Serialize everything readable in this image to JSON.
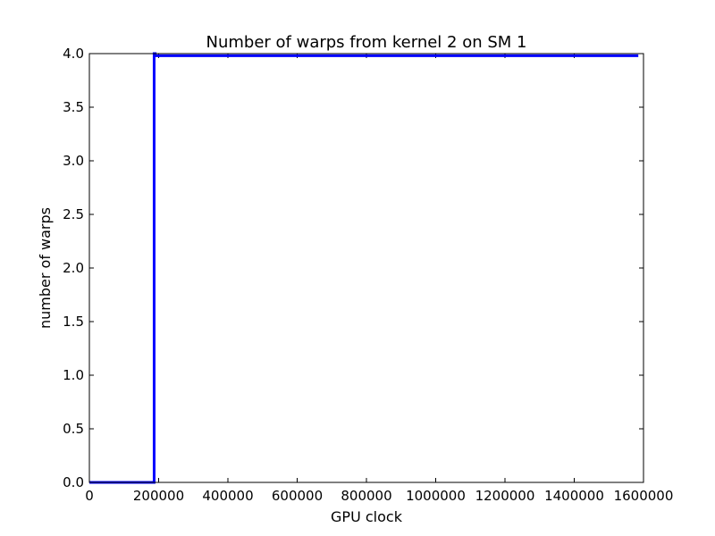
{
  "chart_data": {
    "type": "line",
    "title": "Number of warps from kernel 2 on SM 1",
    "xlabel": "GPU clock",
    "ylabel": "number of warps",
    "xlim": [
      0,
      1600000
    ],
    "ylim": [
      0.0,
      4.0
    ],
    "x_ticks": [
      0,
      200000,
      400000,
      600000,
      800000,
      1000000,
      1200000,
      1400000,
      1600000
    ],
    "x_tick_labels": [
      "0",
      "200000",
      "400000",
      "600000",
      "800000",
      "1000000",
      "1200000",
      "1400000",
      "1600000"
    ],
    "y_ticks": [
      0.0,
      0.5,
      1.0,
      1.5,
      2.0,
      2.5,
      3.0,
      3.5,
      4.0
    ],
    "y_tick_labels": [
      "0.0",
      "0.5",
      "1.0",
      "1.5",
      "2.0",
      "2.5",
      "3.0",
      "3.5",
      "4.0"
    ],
    "grid": false,
    "series": [
      {
        "color": "#0000ff",
        "x": [
          0,
          187000,
          187000,
          190000,
          190000,
          1585000
        ],
        "y": [
          0,
          0,
          4,
          4,
          3.98,
          3.98
        ]
      }
    ]
  }
}
